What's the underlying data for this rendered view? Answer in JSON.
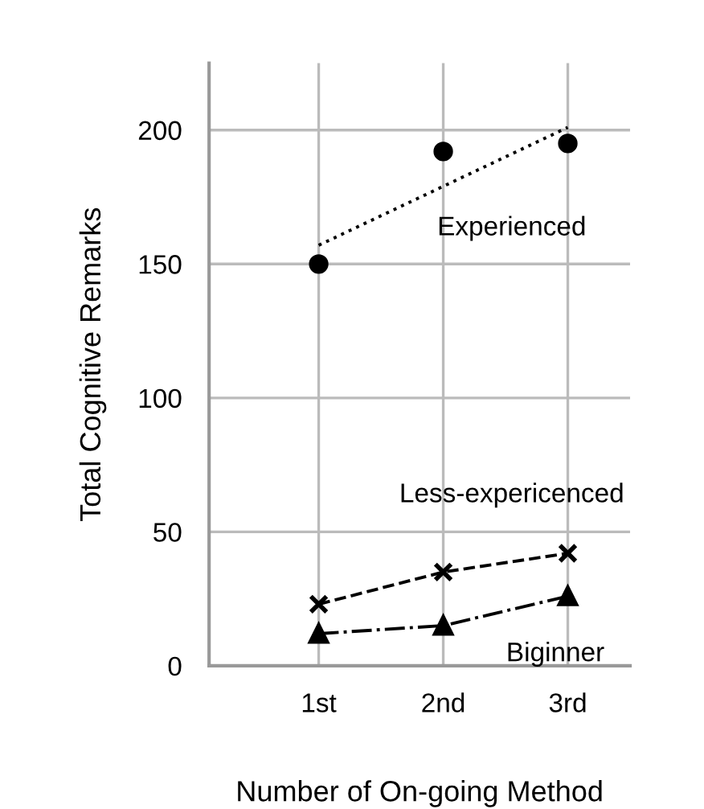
{
  "chart_data": {
    "type": "line",
    "xlabel": "Number of On-going Method",
    "ylabel": "Total Cognitive Remarks",
    "categories": [
      "1st",
      "2nd",
      "3rd"
    ],
    "series": [
      {
        "name": "Experienced",
        "type": "scatter",
        "marker": "circle",
        "color": "#000000",
        "values": [
          150,
          192,
          195
        ]
      },
      {
        "line_style": "dotted",
        "marker": "none",
        "color": "#000000",
        "values": [
          157,
          179,
          201
        ]
      },
      {
        "name": "Less-expericenced",
        "line_style": "dashed",
        "marker": "cross",
        "color": "#000000",
        "values": [
          23,
          35,
          42
        ]
      },
      {
        "name": "Biginner",
        "line_style": "dashdot",
        "marker": "triangle",
        "color": "#000000",
        "values": [
          12,
          15,
          26
        ]
      }
    ],
    "ylim": [
      0,
      225
    ],
    "yticks": [
      0,
      50,
      100,
      150,
      200
    ],
    "grid": true,
    "legend": false
  }
}
